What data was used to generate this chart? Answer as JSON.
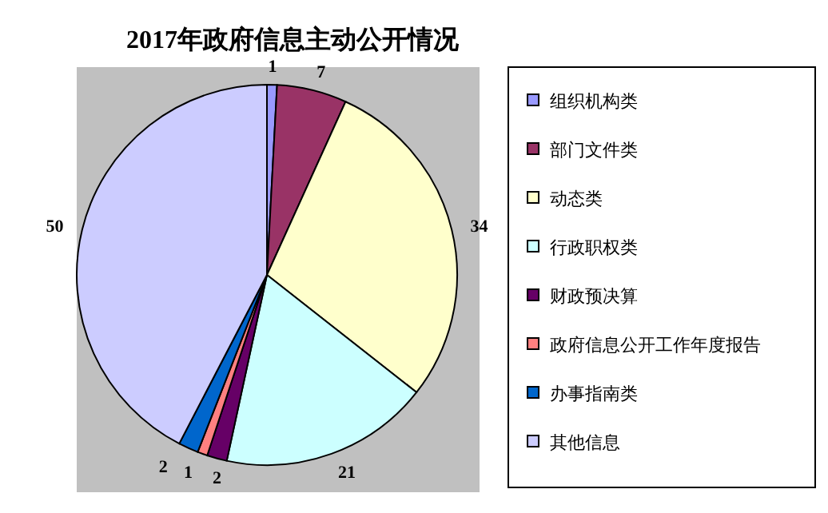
{
  "chart_data": {
    "type": "pie",
    "title": "2017年政府信息主动公开情况",
    "categories": [
      "组织机构类",
      "部门文件类",
      "动态类",
      "行政职权类",
      "财政预决算",
      "政府信息公开工作年度报告",
      "办事指南类",
      "其他信息"
    ],
    "values": [
      1,
      7,
      34,
      21,
      2,
      1,
      2,
      50
    ],
    "colors": [
      "#9999ff",
      "#993366",
      "#ffffcc",
      "#ccffff",
      "#660066",
      "#ff8080",
      "#0066cc",
      "#ccccff"
    ],
    "data_labels": true,
    "legend": "right"
  }
}
